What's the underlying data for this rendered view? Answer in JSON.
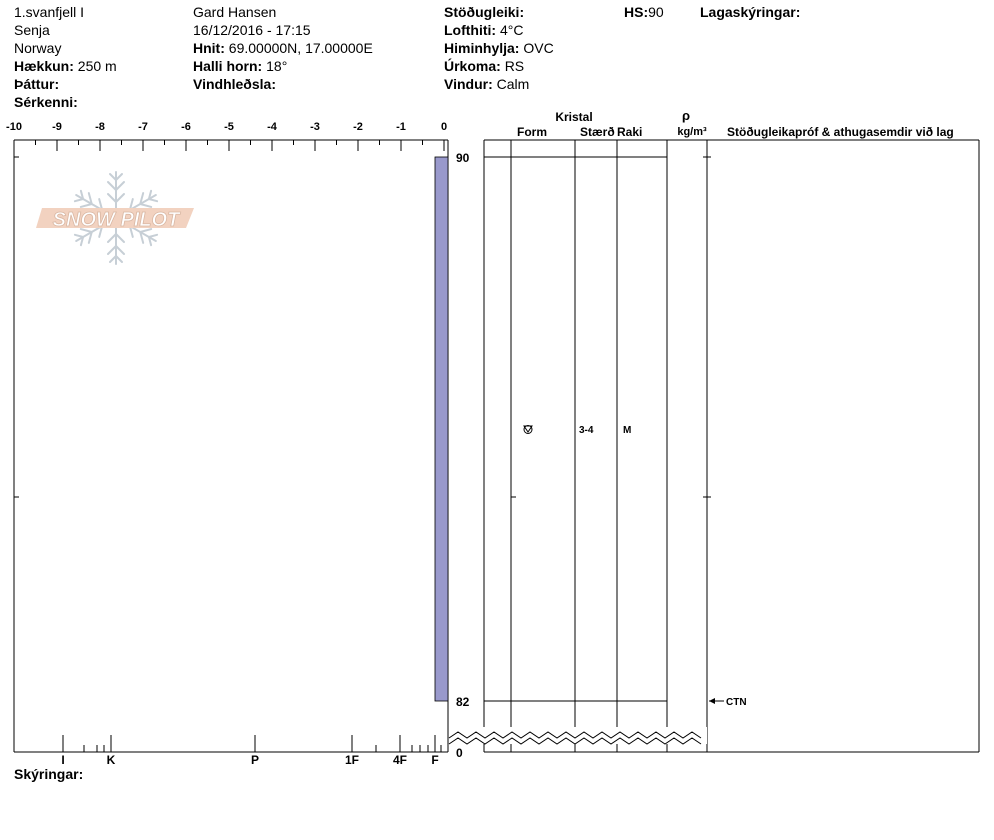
{
  "header": {
    "col1": {
      "location": "1.svanfjell I",
      "region": "Senja",
      "country": "Norway",
      "elevation_label": "Hækkun:",
      "elevation_value": "250 m",
      "aspect_label": "Þáttur:",
      "aspect_value": "",
      "features_label": "Sérkenni:",
      "features_value": ""
    },
    "col2": {
      "observer": "Gard Hansen",
      "datetime": "16/12/2016 - 17:15",
      "coords_label": "Hnit:",
      "coords_value": "69.00000N, 17.00000E",
      "slope_label": "Halli horn:",
      "slope_value": "18°",
      "wind_loading_label": "Vindhleðsla:",
      "wind_loading_value": ""
    },
    "col3": {
      "stability_label": "Stöðugleiki:",
      "stability_value": "",
      "air_temp_label": "Lofthiti:",
      "air_temp_value": "4°C",
      "sky_label": "Himinhylja:",
      "sky_value": "OVC",
      "precip_label": "Úrkoma:",
      "precip_value": "RS",
      "wind_label": "Vindur:",
      "wind_value": "Calm"
    },
    "hs_label": "HS:",
    "hs_value": "90",
    "layer_notes_label": "Lagaskýringar:",
    "layer_notes_value": ""
  },
  "footer": {
    "notes_label": "Skýringar:",
    "notes_value": ""
  },
  "logo": {
    "text": "SNOW PILOT"
  },
  "table": {
    "group_header": "Kristal",
    "form_header": "Form",
    "size_header": "Stærð",
    "moisture_header": "Raki",
    "density_symbol": "ρ",
    "density_unit": "kg/m³",
    "comments_header": "Stöðugleikapróf & athugasemdir við lag",
    "layers": [
      {
        "top": 90,
        "bottom": 82,
        "form_icon": "faceted-rounded-icon",
        "size": "3-4",
        "moisture": "M"
      }
    ],
    "tests": [
      {
        "depth": 82,
        "label": "CTN"
      }
    ]
  },
  "chart_data": {
    "type": "bar",
    "title": "",
    "temperature_axis": {
      "ticks": [
        -10,
        -9,
        -8,
        -7,
        -6,
        -5,
        -4,
        -3,
        -2,
        -1,
        0
      ],
      "tick_labels": [
        "-10",
        "-9",
        "-8",
        "-7",
        "-6",
        "-5",
        "-4",
        "-3",
        "-2",
        "-1",
        "0"
      ],
      "range": [
        -10,
        0
      ]
    },
    "hardness_axis": {
      "labels": [
        "I",
        "K",
        "P",
        "1F",
        "4F",
        "F"
      ]
    },
    "height_axis": {
      "range": [
        0,
        90
      ],
      "labels": [
        "90",
        "82",
        "0"
      ],
      "label_values": [
        90,
        82,
        0
      ]
    },
    "hardness_layers": [
      {
        "top": 90,
        "bottom": 82,
        "hardness": "F"
      }
    ],
    "bar_color": "#9999cc"
  }
}
